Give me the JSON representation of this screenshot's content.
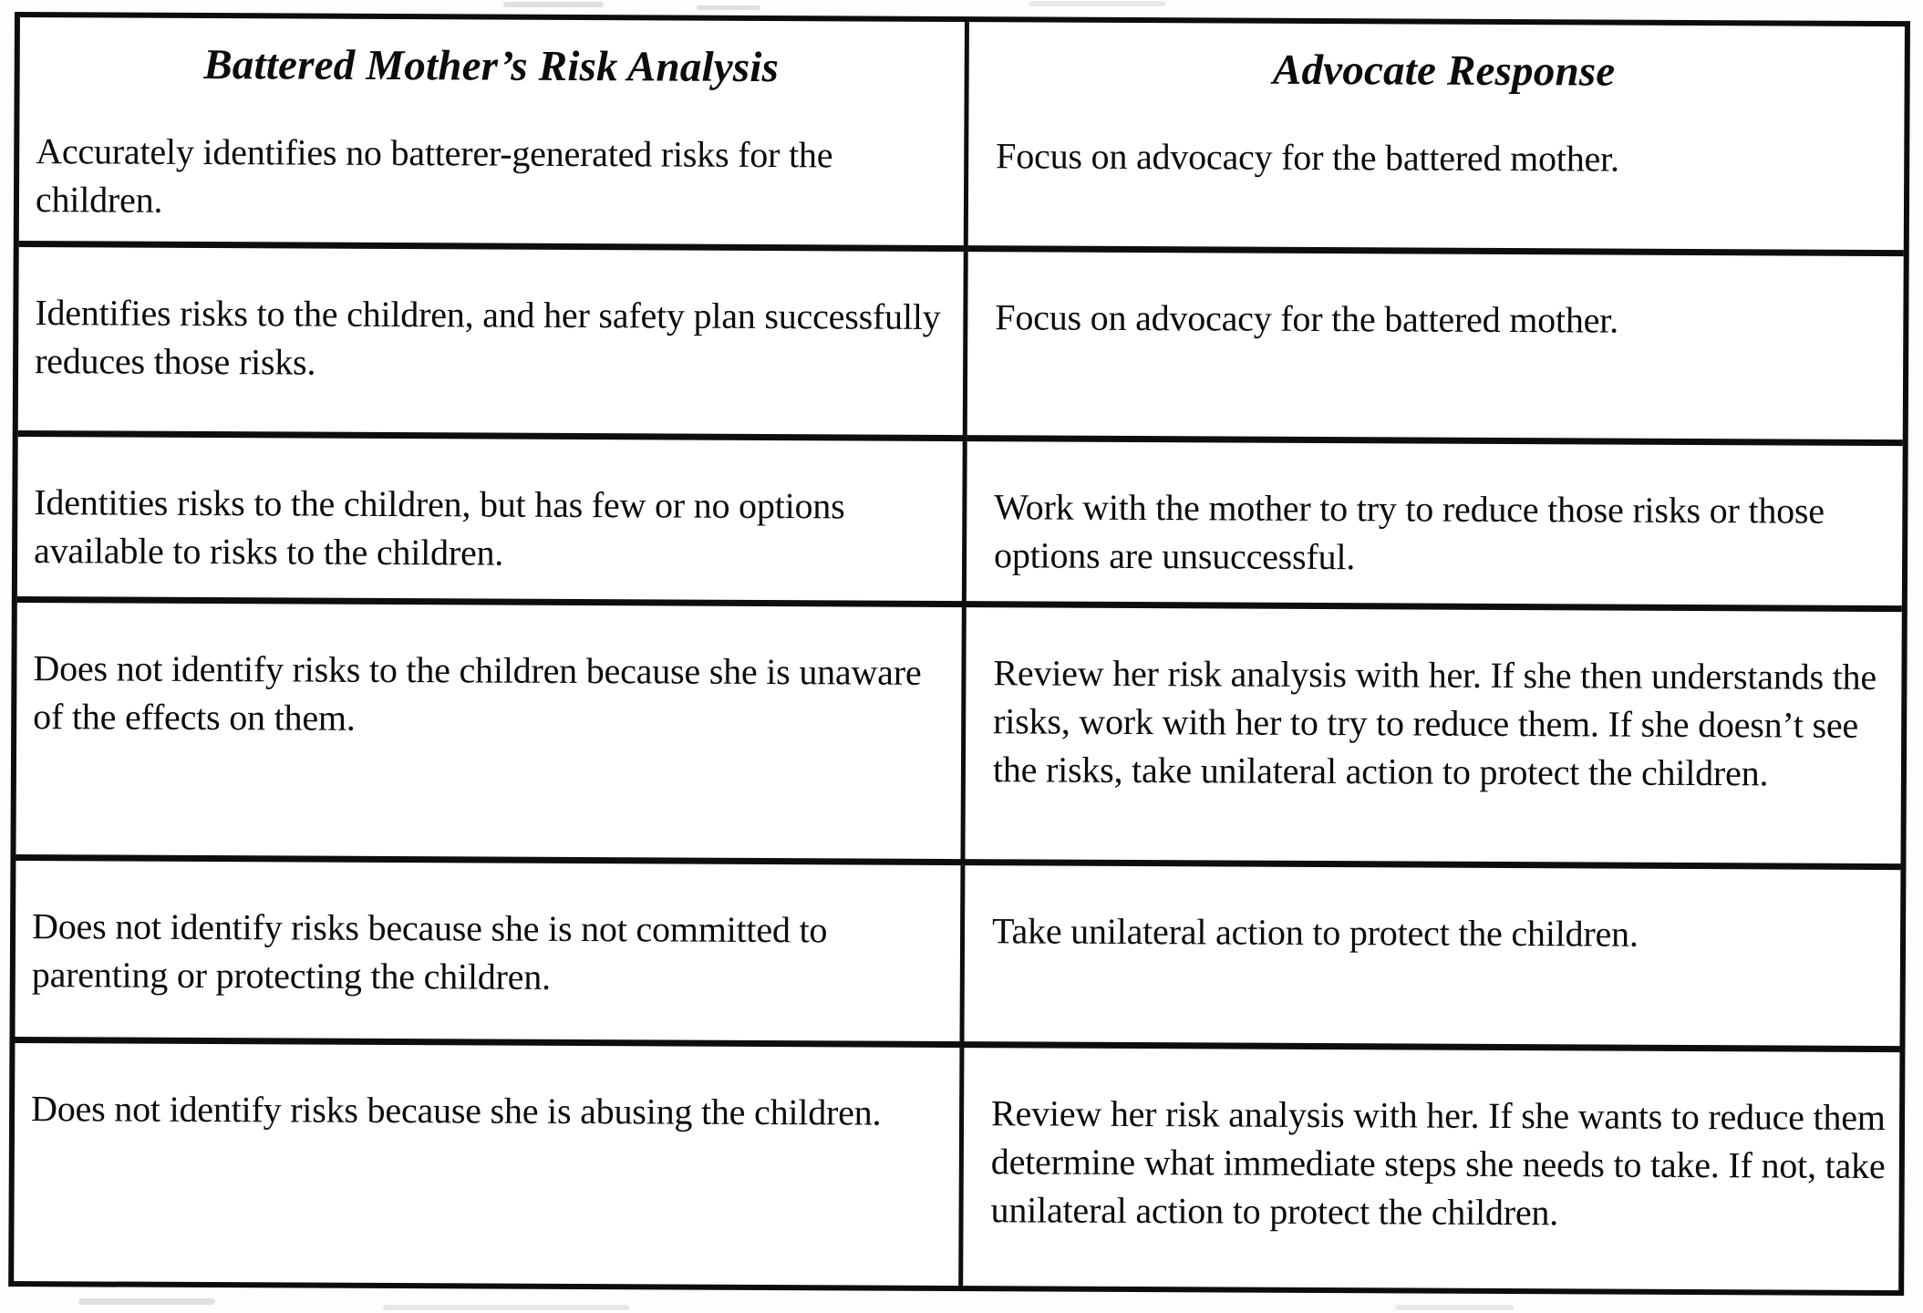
{
  "table": {
    "columns": [
      {
        "header": "Battered Mother’s Risk Analysis"
      },
      {
        "header": "Advocate Response"
      }
    ],
    "rows": [
      {
        "risk": "Accurately identifies no batterer-generated risks for the children.",
        "response": "Focus on advocacy for the battered mother."
      },
      {
        "risk": "Identifies risks to the children, and her safety plan successfully reduces those risks.",
        "response": "Focus on advocacy for the battered mother."
      },
      {
        "risk": "Identities risks to the children, but has few or no options available to risks to the children.",
        "response": "Work with the mother to try to reduce those risks or those options are unsuccessful."
      },
      {
        "risk": "Does not identify risks to the children because she is unaware of the effects on them.",
        "response": "Review her risk analysis with her. If she then understands the risks, work with her to try to reduce them. If she doesn’t see the risks, take unilateral action to protect the children."
      },
      {
        "risk": "Does not identify risks because she is not committed to parenting or protecting the children.",
        "response": "Take unilateral action to protect the children."
      },
      {
        "risk": "Does not identify risks because she is abusing the children.",
        "response": "Review her risk analysis with her. If she wants to reduce them determine what immediate steps she needs to take. If not, take unilateral action to protect the children."
      }
    ],
    "colors": {
      "text": "#0c0c0c",
      "border": "#0d0d0d",
      "background": "#ffffff"
    }
  }
}
